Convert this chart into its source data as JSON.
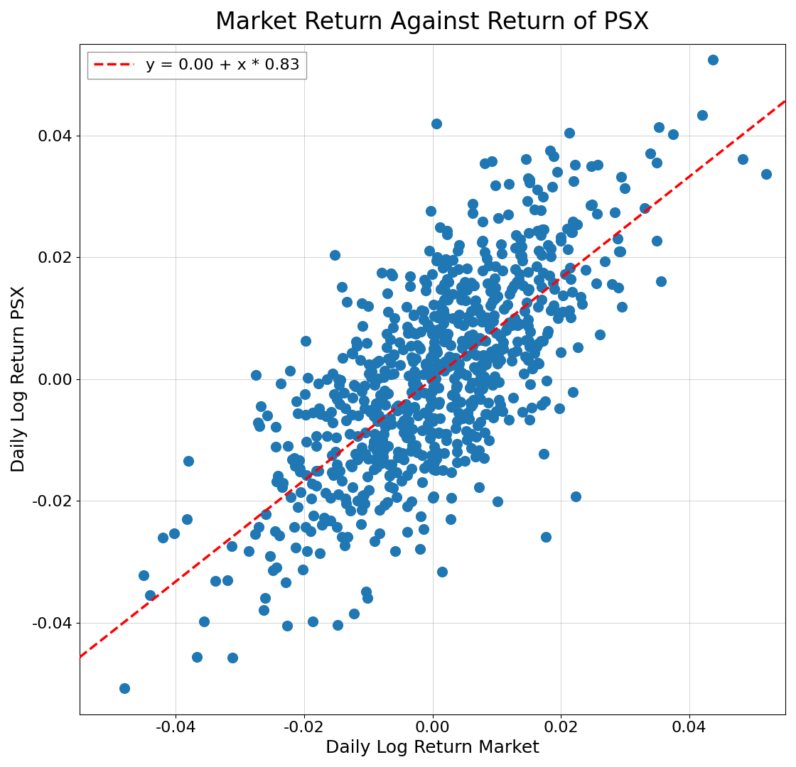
{
  "title": "Market Return Against Return of PSX",
  "xlabel": "Daily Log Return Market",
  "ylabel": "Daily Log Return PSX",
  "legend_label": "y = 0.00 + x * 0.83",
  "intercept": 0.0,
  "slope": 0.83,
  "dot_color": "#1f77b4",
  "line_color": "#ff0000",
  "dot_size": 120,
  "xlim": [
    -0.055,
    0.055
  ],
  "ylim": [
    -0.055,
    0.055
  ],
  "xticks": [
    -0.04,
    -0.02,
    0.0,
    0.02,
    0.04
  ],
  "yticks": [
    -0.04,
    -0.02,
    0.0,
    0.02,
    0.04
  ],
  "n_points": 750,
  "seed": 17,
  "market_std": 0.013,
  "noise_std": 0.011,
  "title_fontsize": 24,
  "label_fontsize": 18,
  "tick_fontsize": 16,
  "legend_fontsize": 16,
  "figwidth": 11.2,
  "figheight": 10.8
}
